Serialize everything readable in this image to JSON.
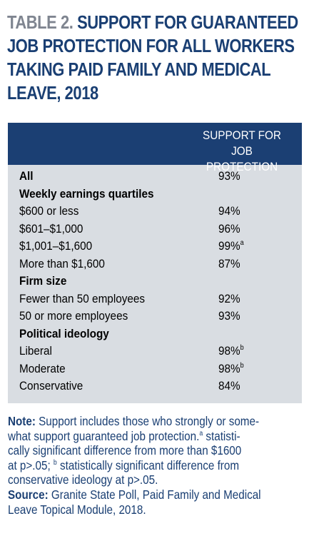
{
  "title": {
    "prefix": "TABLE 2.",
    "line1_rest": "SUPPORT FOR GUARANTEED",
    "line2": "JOB PROTECTION FOR ALL WORKERS",
    "line3": "TAKING PAID FAMILY AND MEDICAL",
    "line4": "LEAVE, 2018"
  },
  "header": {
    "col_line1": "SUPPORT FOR",
    "col_line2": "JOB PROTECTION"
  },
  "rows": [
    {
      "label": "All",
      "value": "93%",
      "sup": "",
      "bold": true
    },
    {
      "label": "Weekly earnings quartiles",
      "value": "",
      "sup": "",
      "bold": true
    },
    {
      "label": "$600 or less",
      "value": "94%",
      "sup": "",
      "bold": false
    },
    {
      "label": "$601–$1,000",
      "value": "96%",
      "sup": "",
      "bold": false
    },
    {
      "label": "$1,001–$1,600",
      "value": "99%",
      "sup": "a",
      "bold": false
    },
    {
      "label": "More than $1,600",
      "value": "87%",
      "sup": "",
      "bold": false
    },
    {
      "label": "Firm size",
      "value": "",
      "sup": "",
      "bold": true
    },
    {
      "label": "Fewer than 50 employees",
      "value": "92%",
      "sup": "",
      "bold": false
    },
    {
      "label": "50 or more employees",
      "value": "93%",
      "sup": "",
      "bold": false
    },
    {
      "label": "Political ideology",
      "value": "",
      "sup": "",
      "bold": true
    },
    {
      "label": "Liberal",
      "value": "98%",
      "sup": "b",
      "bold": false
    },
    {
      "label": "Moderate",
      "value": "98%",
      "sup": "b",
      "bold": false
    },
    {
      "label": "Conservative",
      "value": "84%",
      "sup": "",
      "bold": false
    }
  ],
  "notes": {
    "note_label": "Note:",
    "note_l1": " Support includes those who strongly or some-",
    "note_l2a": "what support guaranteed job protection.",
    "note_sup_a": "a",
    "note_l2b": " statisti-",
    "note_l3": "cally significant difference from more than $1600",
    "note_l4a": "at p>.05; ",
    "note_sup_b": "b",
    "note_l4b": " statistically significant difference from",
    "note_l5": "conservative ideology at p>.05.",
    "source_label": "Source:",
    "source_l1": " Granite State Poll, Paid Family and Medical",
    "source_l2": "Leave Topical Module, 2018."
  }
}
